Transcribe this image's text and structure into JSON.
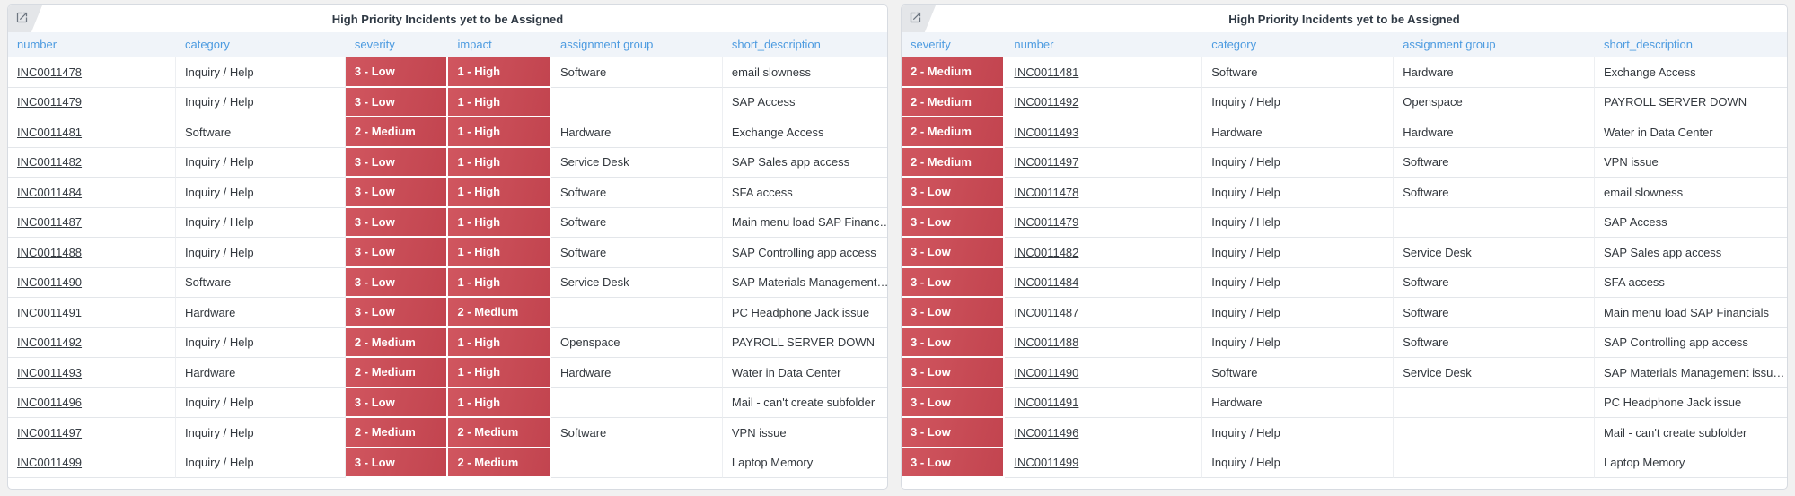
{
  "icons": {
    "popout": "open-record-in-new-window-icon"
  },
  "colors": {
    "header_text_blue": "#4d9be0",
    "severity_red": "#c84c56",
    "title_text": "#2f3944",
    "panel_border": "#d7dbe1",
    "header_row_bg": "#f0f4f9",
    "page_bg": "#f1f1f1"
  },
  "panels": [
    {
      "title": "High Priority Incidents yet to be Assigned",
      "columns": [
        {
          "key": "number",
          "label": "number",
          "style": "link"
        },
        {
          "key": "category",
          "label": "category",
          "style": "text"
        },
        {
          "key": "severity",
          "label": "severity",
          "style": "badge"
        },
        {
          "key": "impact",
          "label": "impact",
          "style": "badge"
        },
        {
          "key": "assignment-group",
          "label": "assignment group",
          "style": "text"
        },
        {
          "key": "short-description",
          "label": "short_description",
          "style": "text"
        }
      ],
      "rows": [
        [
          "INC0011478",
          "Inquiry / Help",
          "3 - Low",
          "1 - High",
          "Software",
          "email slowness"
        ],
        [
          "INC0011479",
          "Inquiry / Help",
          "3 - Low",
          "1 - High",
          "",
          "SAP Access"
        ],
        [
          "INC0011481",
          "Software",
          "2 - Medium",
          "1 - High",
          "Hardware",
          "Exchange Access"
        ],
        [
          "INC0011482",
          "Inquiry / Help",
          "3 - Low",
          "1 - High",
          "Service Desk",
          "SAP Sales app access"
        ],
        [
          "INC0011484",
          "Inquiry / Help",
          "3 - Low",
          "1 - High",
          "Software",
          "SFA access"
        ],
        [
          "INC0011487",
          "Inquiry / Help",
          "3 - Low",
          "1 - High",
          "Software",
          "Main menu load SAP Financ…"
        ],
        [
          "INC0011488",
          "Inquiry / Help",
          "3 - Low",
          "1 - High",
          "Software",
          "SAP Controlling app access"
        ],
        [
          "INC0011490",
          "Software",
          "3 - Low",
          "1 - High",
          "Service Desk",
          "SAP Materials Management…"
        ],
        [
          "INC0011491",
          "Hardware",
          "3 - Low",
          "2 - Medium",
          "",
          "PC Headphone Jack issue"
        ],
        [
          "INC0011492",
          "Inquiry / Help",
          "2 - Medium",
          "1 - High",
          "Openspace",
          "PAYROLL SERVER DOWN"
        ],
        [
          "INC0011493",
          "Hardware",
          "2 - Medium",
          "1 - High",
          "Hardware",
          "Water in Data Center"
        ],
        [
          "INC0011496",
          "Inquiry / Help",
          "3 - Low",
          "1 - High",
          "",
          "Mail - can't create subfolder"
        ],
        [
          "INC0011497",
          "Inquiry / Help",
          "2 - Medium",
          "2 - Medium",
          "Software",
          "VPN issue"
        ],
        [
          "INC0011499",
          "Inquiry / Help",
          "3 - Low",
          "2 - Medium",
          "",
          "Laptop Memory"
        ]
      ]
    },
    {
      "title": "High Priority Incidents yet to be Assigned",
      "columns": [
        {
          "key": "severity",
          "label": "severity",
          "style": "badge"
        },
        {
          "key": "number",
          "label": "number",
          "style": "link"
        },
        {
          "key": "category",
          "label": "category",
          "style": "text"
        },
        {
          "key": "assignment-group",
          "label": "assignment group",
          "style": "text"
        },
        {
          "key": "short-description",
          "label": "short_description",
          "style": "text"
        }
      ],
      "rows": [
        [
          "2 - Medium",
          "INC0011481",
          "Software",
          "Hardware",
          "Exchange Access"
        ],
        [
          "2 - Medium",
          "INC0011492",
          "Inquiry / Help",
          "Openspace",
          "PAYROLL SERVER DOWN"
        ],
        [
          "2 - Medium",
          "INC0011493",
          "Hardware",
          "Hardware",
          "Water in Data Center"
        ],
        [
          "2 - Medium",
          "INC0011497",
          "Inquiry / Help",
          "Software",
          "VPN issue"
        ],
        [
          "3 - Low",
          "INC0011478",
          "Inquiry / Help",
          "Software",
          "email slowness"
        ],
        [
          "3 - Low",
          "INC0011479",
          "Inquiry / Help",
          "",
          "SAP Access"
        ],
        [
          "3 - Low",
          "INC0011482",
          "Inquiry / Help",
          "Service Desk",
          "SAP Sales app access"
        ],
        [
          "3 - Low",
          "INC0011484",
          "Inquiry / Help",
          "Software",
          "SFA access"
        ],
        [
          "3 - Low",
          "INC0011487",
          "Inquiry / Help",
          "Software",
          "Main menu load SAP Financials"
        ],
        [
          "3 - Low",
          "INC0011488",
          "Inquiry / Help",
          "Software",
          "SAP Controlling app access"
        ],
        [
          "3 - Low",
          "INC0011490",
          "Software",
          "Service Desk",
          "SAP Materials Management issu…"
        ],
        [
          "3 - Low",
          "INC0011491",
          "Hardware",
          "",
          "PC Headphone Jack issue"
        ],
        [
          "3 - Low",
          "INC0011496",
          "Inquiry / Help",
          "",
          "Mail - can't create subfolder"
        ],
        [
          "3 - Low",
          "INC0011499",
          "Inquiry / Help",
          "",
          "Laptop Memory"
        ]
      ]
    }
  ]
}
